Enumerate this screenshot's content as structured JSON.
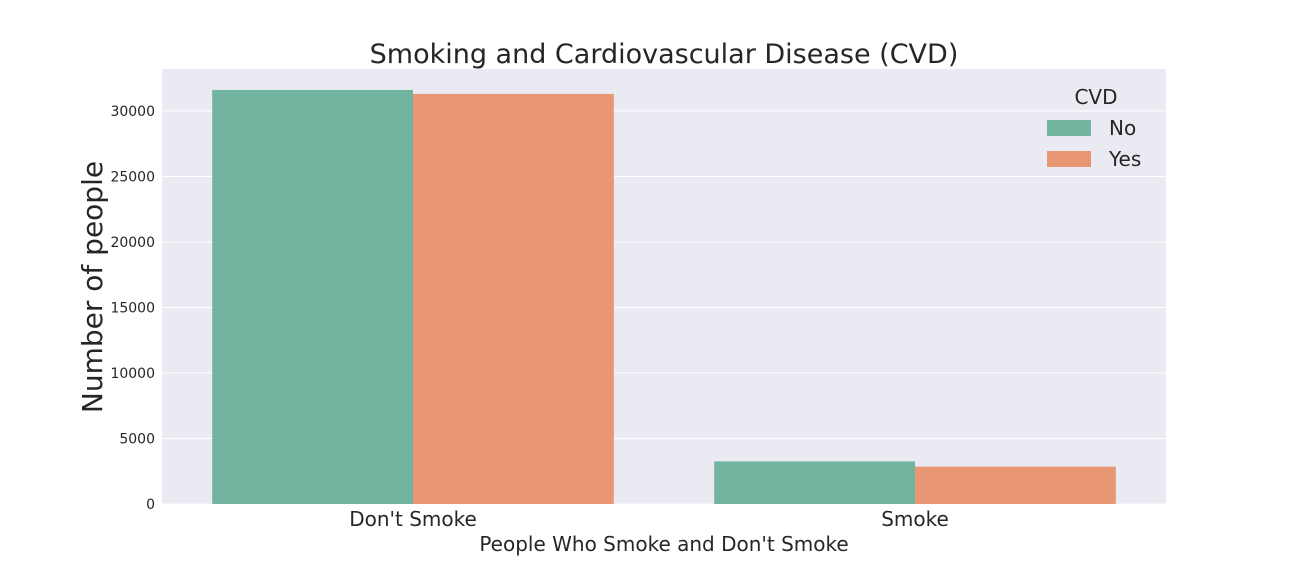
{
  "chart_data": {
    "type": "bar",
    "title": "Smoking and Cardiovascular Disease (CVD)",
    "xlabel": "People Who Smoke and Don't Smoke",
    "ylabel": "Number of people",
    "categories": [
      "Don't Smoke",
      "Smoke"
    ],
    "series": [
      {
        "name": "No",
        "values": [
          31600,
          3250
        ],
        "color": "#72b4a0"
      },
      {
        "name": "Yes",
        "values": [
          31300,
          2850
        ],
        "color": "#e89673"
      }
    ],
    "yticks": [
      0,
      5000,
      10000,
      15000,
      20000,
      25000,
      30000
    ],
    "ylim": [
      0,
      33200
    ],
    "grid": true,
    "legend": {
      "title": "CVD",
      "position": "top-right"
    },
    "plot_background": "#eaeaf2"
  }
}
